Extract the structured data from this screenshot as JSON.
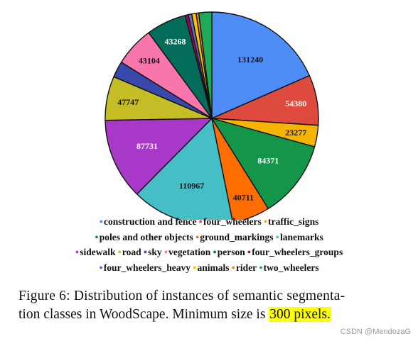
{
  "chart_data": {
    "type": "pie",
    "title": "",
    "slices": [
      {
        "label": "construction and fence",
        "value": 131240,
        "color": "#4f8df6",
        "show_value": true
      },
      {
        "label": "four_wheelers",
        "value": 54380,
        "color": "#de4a3d",
        "show_value": true
      },
      {
        "label": "traffic_signs",
        "value": 23277,
        "color": "#f4b400",
        "show_value": true
      },
      {
        "label": "poles and other objects",
        "value": 84371,
        "color": "#13964a",
        "show_value": true
      },
      {
        "label": "ground_markings",
        "value": 40711,
        "color": "#ff6d00",
        "show_value": true
      },
      {
        "label": "lanemarks",
        "value": 110967,
        "color": "#46bec6",
        "show_value": true
      },
      {
        "label": "sidewalk",
        "value": 87731,
        "color": "#a838c8",
        "show_value": true
      },
      {
        "label": "road",
        "value": 47747,
        "color": "#c4bd25",
        "show_value": true
      },
      {
        "label": "sky",
        "value": 17500,
        "color": "#3949ab",
        "show_value": false
      },
      {
        "label": "vegetation",
        "value": 43104,
        "color": "#f777ac",
        "show_value": true
      },
      {
        "label": "person",
        "value": 43268,
        "color": "#036c5b",
        "show_value": true
      },
      {
        "label": "four_wheelers_groups",
        "value": 3300,
        "color": "#b0005a",
        "show_value": false
      },
      {
        "label": "four_wheelers_heavy",
        "value": 3800,
        "color": "#5c6bc0",
        "show_value": false
      },
      {
        "label": "animals",
        "value": 4800,
        "color": "#f9c100",
        "show_value": false
      },
      {
        "label": "rider",
        "value": 2800,
        "color": "#ee8a1f",
        "show_value": false
      },
      {
        "label": "two_wheelers",
        "value": 14000,
        "color": "#1faa58",
        "show_value": false
      }
    ],
    "start_angle_deg": 0,
    "direction": "clockwise",
    "legend_position": "bottom"
  },
  "legend_rows": [
    [
      0,
      1,
      2
    ],
    [
      3,
      4,
      5
    ],
    [
      6,
      7,
      8,
      9,
      10,
      11
    ],
    [
      12,
      13,
      14,
      15
    ]
  ],
  "caption": {
    "line1": "Figure 6:  Distribution of instances of semantic segmenta-",
    "line2_prefix": "tion classes in WoodScape. Minimum size is ",
    "line2_highlight": "300 pixels."
  },
  "watermark": "CSDN @MendozaG"
}
